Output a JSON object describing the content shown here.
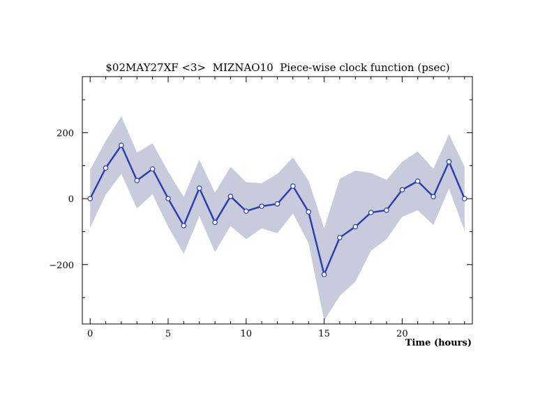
{
  "chart_data": {
    "type": "line",
    "title": "$02MAY27XF <3>  MIZNAO10  Piece-wise clock function (psec)",
    "xlabel": "Time (hours)",
    "ylabel": "",
    "xlim": [
      -0.5,
      24.5
    ],
    "ylim": [
      -380,
      370
    ],
    "x_ticks": [
      0,
      5,
      10,
      15,
      20
    ],
    "y_ticks": [
      -200,
      0,
      200
    ],
    "x_minor_step": 1,
    "y_minor_step": 100,
    "grid": false,
    "line_color": "#2a3fb5",
    "band_color": "#c8cbdc",
    "series": [
      {
        "x": [
          0,
          1,
          2,
          3,
          4,
          5,
          6,
          7,
          8,
          9,
          10,
          11,
          12,
          13,
          14,
          15,
          16,
          17,
          18,
          19,
          20,
          21,
          22,
          23,
          24
        ],
        "values": [
          0,
          93,
          162,
          55,
          90,
          0,
          -82,
          32,
          -72,
          7,
          -38,
          -23,
          -16,
          38,
          -40,
          -230,
          -118,
          -85,
          -42,
          -35,
          27,
          53,
          6,
          112,
          0
        ],
        "upper": [
          88,
          175,
          250,
          140,
          168,
          82,
          5,
          118,
          18,
          97,
          50,
          47,
          75,
          125,
          55,
          -90,
          60,
          85,
          78,
          57,
          112,
          143,
          90,
          195,
          97
        ],
        "lower": [
          -88,
          12,
          75,
          -30,
          13,
          -85,
          -167,
          -53,
          -162,
          -83,
          -123,
          -90,
          -105,
          -45,
          -135,
          -370,
          -295,
          -252,
          -158,
          -123,
          -55,
          -35,
          -80,
          30,
          -97
        ]
      }
    ]
  }
}
